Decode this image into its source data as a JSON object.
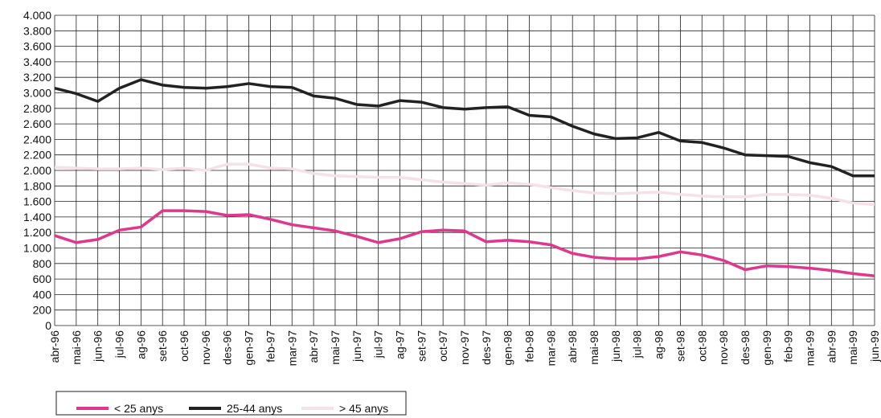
{
  "chart_data": {
    "type": "line",
    "categories": [
      "abr-96",
      "mai-96",
      "jun-96",
      "jul-96",
      "ag-96",
      "set-96",
      "oct-96",
      "nov-96",
      "des-96",
      "gen-97",
      "feb-97",
      "mar-97",
      "abr-97",
      "mai-97",
      "jun-97",
      "jul-97",
      "ag-97",
      "set-97",
      "oct-97",
      "nov-97",
      "des-97",
      "gen-98",
      "feb-98",
      "mar-98",
      "abr-98",
      "mai-98",
      "jun-98",
      "jul-98",
      "ag-98",
      "set-98",
      "oct-98",
      "nov-98",
      "des-98",
      "gen-99",
      "feb-99",
      "mar-99",
      "abr-99",
      "mai-99",
      "jun-99"
    ],
    "series": [
      {
        "name": "< 25 anys",
        "color": "#e0368c",
        "values": [
          1160,
          1070,
          1110,
          1230,
          1270,
          1480,
          1480,
          1470,
          1420,
          1430,
          1370,
          1300,
          1260,
          1220,
          1150,
          1070,
          1120,
          1210,
          1230,
          1220,
          1080,
          1100,
          1080,
          1040,
          930,
          880,
          860,
          860,
          890,
          950,
          910,
          840,
          720,
          770,
          760,
          740,
          710,
          670,
          640
        ]
      },
      {
        "name": "25-44 anys",
        "color": "#222222",
        "values": [
          3060,
          2990,
          2890,
          3060,
          3170,
          3100,
          3070,
          3060,
          3080,
          3120,
          3080,
          3070,
          2960,
          2930,
          2850,
          2830,
          2900,
          2880,
          2810,
          2790,
          2810,
          2820,
          2710,
          2690,
          2570,
          2470,
          2410,
          2420,
          2490,
          2380,
          2360,
          2290,
          2200,
          2190,
          2180,
          2100,
          2050,
          1930,
          1930
        ]
      },
      {
        "name": "> 45 anys",
        "color": "#f6e0ea",
        "values": [
          2040,
          2030,
          2020,
          2020,
          2030,
          2010,
          2030,
          2000,
          2080,
          2080,
          2030,
          2020,
          1960,
          1930,
          1920,
          1910,
          1910,
          1880,
          1850,
          1830,
          1810,
          1840,
          1820,
          1780,
          1740,
          1710,
          1700,
          1710,
          1720,
          1690,
          1670,
          1660,
          1660,
          1690,
          1690,
          1680,
          1640,
          1580,
          1560
        ]
      }
    ],
    "ylim": [
      0,
      4000
    ],
    "yticks": [
      0,
      200,
      400,
      600,
      800,
      {
        "value": 1000,
        "label": "1.000"
      },
      {
        "value": 1200,
        "label": "1.200"
      },
      {
        "value": 1400,
        "label": "1.400"
      },
      {
        "value": 1600,
        "label": "1.600"
      },
      {
        "value": 1800,
        "label": "1.800"
      },
      {
        "value": 2000,
        "label": "2.000"
      },
      {
        "value": 2200,
        "label": "2.200"
      },
      {
        "value": 2400,
        "label": "2.400"
      },
      {
        "value": 2600,
        "label": "2.600"
      },
      {
        "value": 2800,
        "label": "2.800"
      },
      {
        "value": 3000,
        "label": "3.000"
      },
      {
        "value": 3200,
        "label": "3.200"
      },
      {
        "value": 3400,
        "label": "3.400"
      },
      {
        "value": 3600,
        "label": "3.600"
      },
      {
        "value": 3800,
        "label": "3.800"
      },
      {
        "value": 4000,
        "label": "4.000"
      }
    ],
    "grid": true
  }
}
